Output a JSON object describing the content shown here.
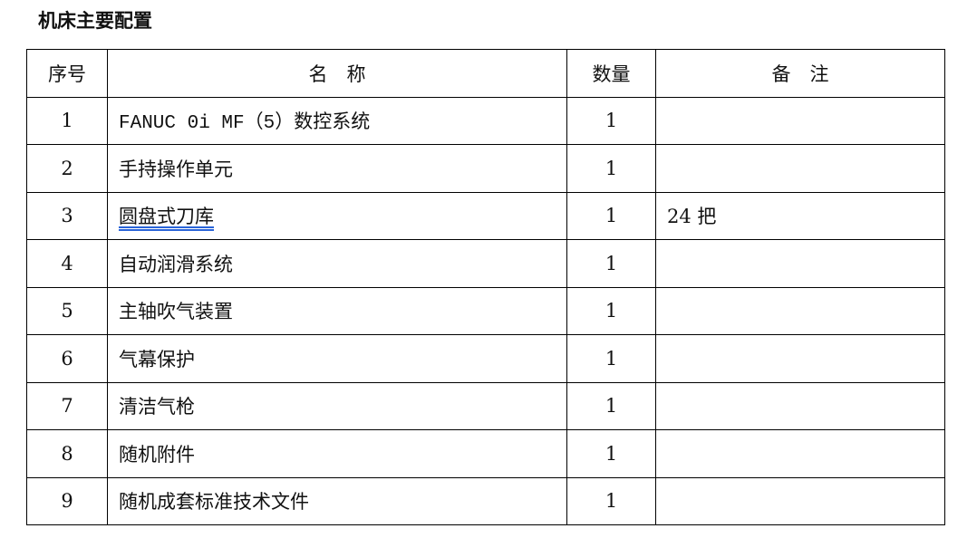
{
  "title": "机床主要配置",
  "table": {
    "headers": [
      "序号",
      "名　称",
      "数量",
      "备　注"
    ],
    "rows": [
      {
        "no": "1",
        "name": "FANUC 0i MF（5）数控系统",
        "qty": "1",
        "note": ""
      },
      {
        "no": "2",
        "name": "手持操作单元",
        "qty": "1",
        "note": ""
      },
      {
        "no": "3",
        "name": "圆盘式刀库",
        "qty": "1",
        "note": "24 把"
      },
      {
        "no": "4",
        "name": "自动润滑系统",
        "qty": "1",
        "note": ""
      },
      {
        "no": "5",
        "name": "主轴吹气装置",
        "qty": "1",
        "note": ""
      },
      {
        "no": "6",
        "name": "气幕保护",
        "qty": "1",
        "note": ""
      },
      {
        "no": "7",
        "name": "清洁气枪",
        "qty": "1",
        "note": ""
      },
      {
        "no": "8",
        "name": "随机附件",
        "qty": "1",
        "note": ""
      },
      {
        "no": "9",
        "name": "随机成套标准技术文件",
        "qty": "1",
        "note": ""
      }
    ]
  }
}
